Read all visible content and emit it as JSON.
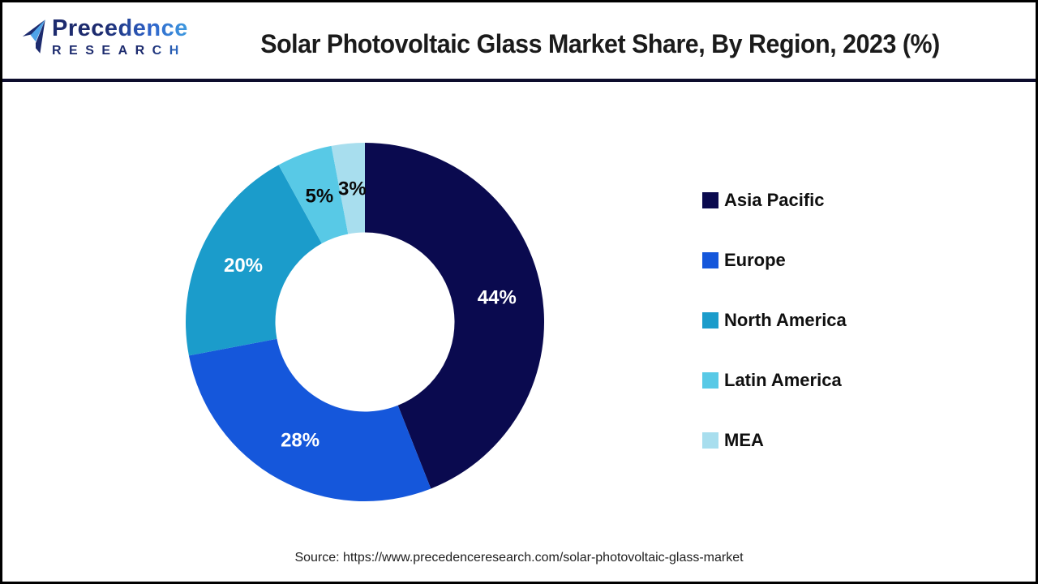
{
  "header": {
    "logo": {
      "line1": "Precedence",
      "line2": "RESEARCH"
    },
    "title": "Solar Photovoltaic Glass Market Share, By Region, 2023 (%)"
  },
  "chart_data": {
    "type": "pie",
    "subtype": "donut",
    "title": "Solar Photovoltaic Glass Market Share, By Region, 2023 (%)",
    "categories": [
      "Asia Pacific",
      "Europe",
      "North America",
      "Latin America",
      "MEA"
    ],
    "values": [
      44,
      28,
      20,
      5,
      3
    ],
    "unit": "%",
    "colors": [
      "#0A0A4F",
      "#1557DB",
      "#1B9CCB",
      "#58C9E6",
      "#A8DEEE"
    ],
    "slice_label_colors": [
      "#FFFFFF",
      "#FFFFFF",
      "#FFFFFF",
      "#0A0A0A",
      "#0A0A0A"
    ],
    "start_angle_deg": 0,
    "direction": "clockwise",
    "inner_radius_ratio": 0.5,
    "legend_position": "right"
  },
  "footer": {
    "source": "Source: https://www.precedenceresearch.com/solar-photovoltaic-glass-market"
  }
}
